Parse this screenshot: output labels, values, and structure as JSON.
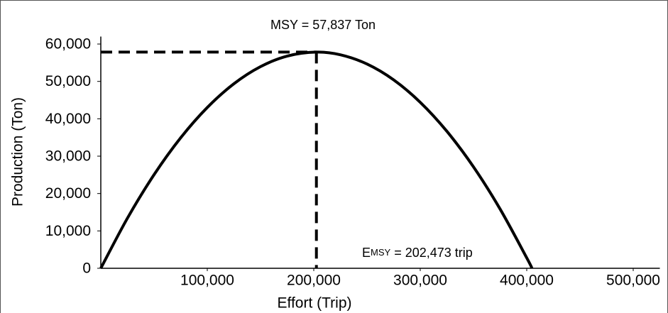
{
  "chart_data": {
    "type": "line",
    "xlabel": "Effort (Trip)",
    "ylabel": "Production (Ton)",
    "x": [
      0,
      25000,
      50000,
      75000,
      100000,
      125000,
      150000,
      175000,
      202473,
      225000,
      250000,
      275000,
      300000,
      325000,
      350000,
      375000,
      400000,
      404946
    ],
    "values": [
      0,
      13400,
      25040,
      34912,
      43020,
      49369,
      53950,
      56772,
      57837,
      57121,
      54650,
      50416,
      44410,
      36657,
      27130,
      15843,
      2791,
      0
    ],
    "color": "#000000",
    "msy_point": {
      "x": 202473,
      "y": 57837
    },
    "annotations": [
      {
        "text": "MSY = 57,837 Ton"
      },
      {
        "parts": [
          "E",
          "MSY",
          " = 202,473 trip"
        ]
      }
    ],
    "xlim": [
      0,
      525000
    ],
    "xticks": [
      {
        "value": 100000,
        "label": "100,000"
      },
      {
        "value": 200000,
        "label": "200,000"
      },
      {
        "value": 300000,
        "label": "300,000"
      },
      {
        "value": 400000,
        "label": "400,000"
      },
      {
        "value": 500000,
        "label": "500,000"
      }
    ],
    "ylim": [
      0,
      62000
    ],
    "yticks": [
      0,
      {
        "value": 10000,
        "label": "10,000"
      },
      {
        "value": 20000,
        "label": "20,000"
      },
      {
        "value": 30000,
        "label": "30,000"
      },
      {
        "value": 40000,
        "label": "40,000"
      },
      {
        "value": 50000,
        "label": "50,000"
      },
      {
        "value": 60000,
        "label": "60,000"
      }
    ],
    "grid": false
  }
}
